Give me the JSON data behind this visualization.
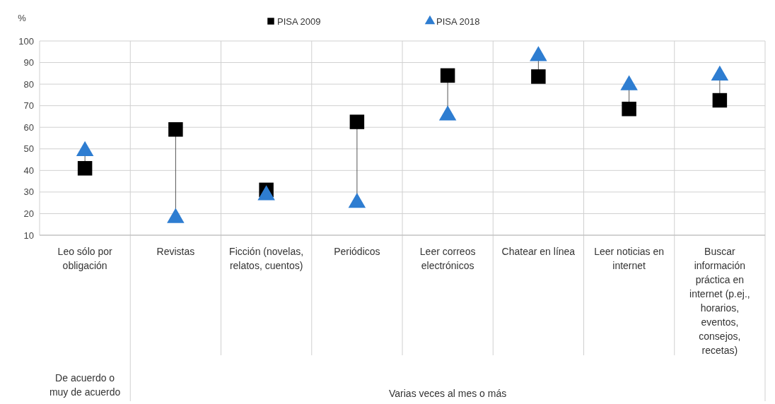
{
  "chart_data": {
    "type": "scatter",
    "ylabel": "%",
    "categories": [
      "Leo sólo por obligación",
      "Revistas",
      "Ficción (novelas, relatos, cuentos)",
      "Periódicos",
      "Leer correos electrónicos",
      "Chatear en línea",
      "Leer noticias en internet",
      "Buscar información práctica en internet (p.ej., horarios, eventos, consejos, recetas)"
    ],
    "series": [
      {
        "name": "PISA 2009",
        "color": "#000000",
        "marker": "square",
        "values": [
          41,
          59,
          31,
          62.5,
          84,
          83.5,
          68.5,
          72.5
        ]
      },
      {
        "name": "PISA 2018",
        "color": "#2e7dd1",
        "marker": "triangle",
        "values": [
          49,
          18,
          28.5,
          25,
          65.5,
          93,
          79.5,
          84
        ]
      }
    ],
    "ylim": [
      10,
      100
    ],
    "yticks": [
      10,
      20,
      30,
      40,
      50,
      60,
      70,
      80,
      90,
      100
    ],
    "grid": "y",
    "legend": "top",
    "annotations": [
      "De acuerdo o muy de acuerdo",
      "Varias veces al mes o más"
    ]
  }
}
